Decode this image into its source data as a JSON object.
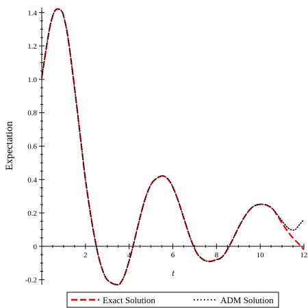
{
  "chart_data": {
    "type": "line",
    "title": "",
    "xlabel": "t",
    "ylabel": "Expectation",
    "xlim": [
      0,
      12
    ],
    "ylim": [
      -0.23,
      1.43
    ],
    "x_ticks": [
      2,
      4,
      6,
      8,
      10,
      12
    ],
    "y_ticks": [
      -0.2,
      0,
      0.2,
      0.4,
      0.6,
      0.8,
      1.0,
      1.2,
      1.4
    ],
    "y_tick_labels": [
      "-0.2",
      "0",
      "0.2",
      "0.4",
      "0.6",
      "0.8",
      "1.0",
      "1.2",
      "1.4"
    ],
    "legend_position": "bottom",
    "series": [
      {
        "name": "Exact Solution",
        "color": "#e8000b",
        "style": "dashed",
        "x": [
          0,
          0.2,
          0.4,
          0.6,
          0.8,
          0.9,
          1.0,
          1.2,
          1.5,
          1.8,
          2.0,
          2.3,
          2.6,
          2.9,
          3.2,
          3.5,
          3.6,
          3.8,
          4.1,
          4.4,
          4.7,
          5.0,
          5.3,
          5.6,
          5.9,
          6.2,
          6.5,
          6.8,
          7.1,
          7.4,
          7.7,
          8.0,
          8.2,
          8.4,
          8.7,
          9.0,
          9.3,
          9.6,
          9.9,
          10.2,
          10.4,
          10.6,
          10.9,
          11.2,
          11.5,
          11.8,
          12.0
        ],
        "y": [
          1.01,
          1.18,
          1.33,
          1.41,
          1.42,
          1.41,
          1.38,
          1.25,
          0.95,
          0.62,
          0.4,
          0.14,
          -0.06,
          -0.18,
          -0.22,
          -0.23,
          -0.22,
          -0.17,
          -0.04,
          0.12,
          0.27,
          0.37,
          0.41,
          0.42,
          0.38,
          0.29,
          0.17,
          0.05,
          -0.04,
          -0.08,
          -0.09,
          -0.08,
          -0.07,
          -0.04,
          0.03,
          0.11,
          0.18,
          0.23,
          0.25,
          0.25,
          0.24,
          0.22,
          0.16,
          0.1,
          0.05,
          0.01,
          -0.02
        ]
      },
      {
        "name": "ADM Solution",
        "color": "#000000",
        "style": "dotted",
        "x": [
          0,
          0.2,
          0.4,
          0.6,
          0.8,
          0.9,
          1.0,
          1.2,
          1.5,
          1.8,
          2.0,
          2.3,
          2.6,
          2.9,
          3.2,
          3.5,
          3.6,
          3.8,
          4.1,
          4.4,
          4.7,
          5.0,
          5.3,
          5.6,
          5.9,
          6.2,
          6.5,
          6.8,
          7.1,
          7.4,
          7.7,
          8.0,
          8.2,
          8.4,
          8.7,
          9.0,
          9.3,
          9.6,
          9.9,
          10.2,
          10.4,
          10.6,
          10.9,
          11.2,
          11.4,
          11.6,
          11.8,
          12.0
        ],
        "y": [
          1.01,
          1.18,
          1.33,
          1.41,
          1.42,
          1.41,
          1.38,
          1.25,
          0.95,
          0.62,
          0.4,
          0.14,
          -0.06,
          -0.18,
          -0.22,
          -0.23,
          -0.22,
          -0.17,
          -0.04,
          0.12,
          0.27,
          0.37,
          0.41,
          0.42,
          0.38,
          0.29,
          0.17,
          0.05,
          -0.04,
          -0.08,
          -0.09,
          -0.08,
          -0.07,
          -0.04,
          0.03,
          0.11,
          0.18,
          0.23,
          0.25,
          0.25,
          0.24,
          0.22,
          0.17,
          0.12,
          0.1,
          0.1,
          0.13,
          0.16
        ]
      }
    ]
  }
}
